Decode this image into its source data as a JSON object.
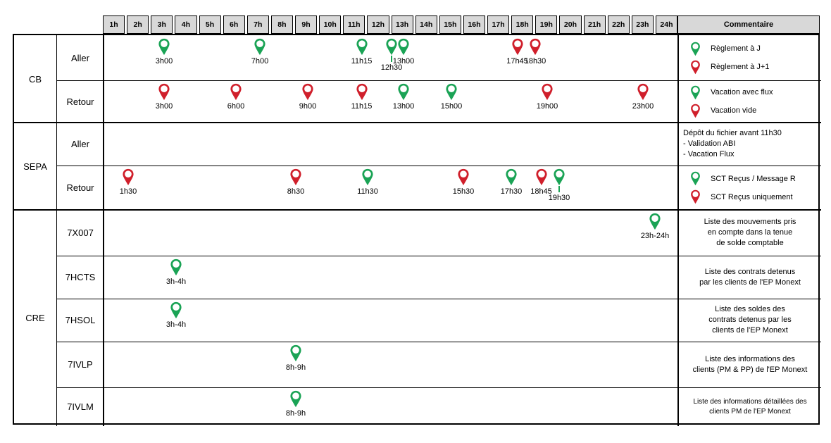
{
  "colors": {
    "green": "#1aa355",
    "red": "#d01f2b",
    "header_bg": "#d8d8d8",
    "border": "#000000"
  },
  "header": {
    "hours": [
      "1h",
      "2h",
      "3h",
      "4h",
      "5h",
      "6h",
      "7h",
      "8h",
      "9h",
      "10h",
      "11h",
      "12h",
      "13h",
      "14h",
      "15h",
      "16h",
      "17h",
      "18h",
      "19h",
      "20h",
      "21h",
      "22h",
      "23h",
      "24h"
    ],
    "comment_label": "Commentaire"
  },
  "groups": [
    {
      "label": "CB",
      "rows": [
        {
          "label": "Aller",
          "pins": [
            {
              "time": "3h00",
              "t": 3,
              "color": "green"
            },
            {
              "time": "7h00",
              "t": 7,
              "color": "green"
            },
            {
              "time": "11h15",
              "t": 11.25,
              "color": "green"
            },
            {
              "time": "12h30",
              "t": 12.5,
              "color": "green",
              "offset": true
            },
            {
              "time": "13h00",
              "t": 13,
              "color": "green"
            },
            {
              "time": "17h45",
              "t": 17.75,
              "color": "red"
            },
            {
              "time": "18h30",
              "t": 18.5,
              "color": "red"
            }
          ],
          "comment": {
            "type": "legend",
            "items": [
              {
                "color": "green",
                "text": "Règlement à J"
              },
              {
                "color": "red",
                "text": "Règlement à J+1"
              }
            ]
          }
        },
        {
          "label": "Retour",
          "pins": [
            {
              "time": "3h00",
              "t": 3,
              "color": "red"
            },
            {
              "time": "6h00",
              "t": 6,
              "color": "red"
            },
            {
              "time": "9h00",
              "t": 9,
              "color": "red"
            },
            {
              "time": "11h15",
              "t": 11.25,
              "color": "red"
            },
            {
              "time": "13h00",
              "t": 13,
              "color": "green"
            },
            {
              "time": "15h00",
              "t": 15,
              "color": "green"
            },
            {
              "time": "19h00",
              "t": 19,
              "color": "red"
            },
            {
              "time": "23h00",
              "t": 23,
              "color": "red"
            }
          ],
          "comment": {
            "type": "legend",
            "items": [
              {
                "color": "green",
                "text": "Vacation avec flux"
              },
              {
                "color": "red",
                "text": "Vacation vide"
              }
            ]
          }
        }
      ]
    },
    {
      "label": "SEPA",
      "rows": [
        {
          "label": "Aller",
          "pins": [],
          "comment": {
            "type": "text",
            "align": "left",
            "lines": [
              "Dépôt du fichier avant 11h30",
              "- Validation ABI",
              "- Vacation Flux"
            ]
          }
        },
        {
          "label": "Retour",
          "pins": [
            {
              "time": "1h30",
              "t": 1.5,
              "color": "red"
            },
            {
              "time": "8h30",
              "t": 8.5,
              "color": "red"
            },
            {
              "time": "11h30",
              "t": 11.5,
              "color": "green"
            },
            {
              "time": "15h30",
              "t": 15.5,
              "color": "red"
            },
            {
              "time": "17h30",
              "t": 17.5,
              "color": "green"
            },
            {
              "time": "18h45",
              "t": 18.75,
              "color": "red"
            },
            {
              "time": "19h30",
              "t": 19.5,
              "color": "green",
              "offset": true
            }
          ],
          "comment": {
            "type": "legend",
            "items": [
              {
                "color": "green",
                "text": "SCT Reçus / Message R"
              },
              {
                "color": "red",
                "text": "SCT Reçus uniquement"
              }
            ]
          }
        }
      ]
    },
    {
      "label": "CRE",
      "rows": [
        {
          "label": "7X007",
          "pins": [
            {
              "time": "23h-24h",
              "t": 23.5,
              "color": "green"
            }
          ],
          "comment": {
            "type": "text",
            "align": "center",
            "lines": [
              "Liste des mouvements pris",
              "en compte dans la tenue",
              "de solde comptable"
            ]
          }
        },
        {
          "label": "7HCTS",
          "pins": [
            {
              "time": "3h-4h",
              "t": 3.5,
              "color": "green"
            }
          ],
          "comment": {
            "type": "text",
            "align": "center",
            "lines": [
              "Liste des contrats detenus",
              "par les clients de l'EP Monext"
            ]
          }
        },
        {
          "label": "7HSOL",
          "pins": [
            {
              "time": "3h-4h",
              "t": 3.5,
              "color": "green"
            }
          ],
          "comment": {
            "type": "text",
            "align": "center",
            "lines": [
              "Liste des soldes des",
              "contrats detenus par les",
              "clients de l'EP Monext"
            ]
          }
        },
        {
          "label": "7IVLP",
          "pins": [
            {
              "time": "8h-9h",
              "t": 8.5,
              "color": "green"
            }
          ],
          "comment": {
            "type": "text",
            "align": "center",
            "lines": [
              "Liste des informations des",
              "clients (PM & PP) de l'EP Monext"
            ]
          }
        },
        {
          "label": "7IVLM",
          "pins": [
            {
              "time": "8h-9h",
              "t": 8.5,
              "color": "green"
            }
          ],
          "comment": {
            "type": "text",
            "align": "center",
            "lines": [
              "Liste des informations détaillées des",
              "clients PM de l'EP Monext"
            ]
          }
        }
      ]
    }
  ]
}
